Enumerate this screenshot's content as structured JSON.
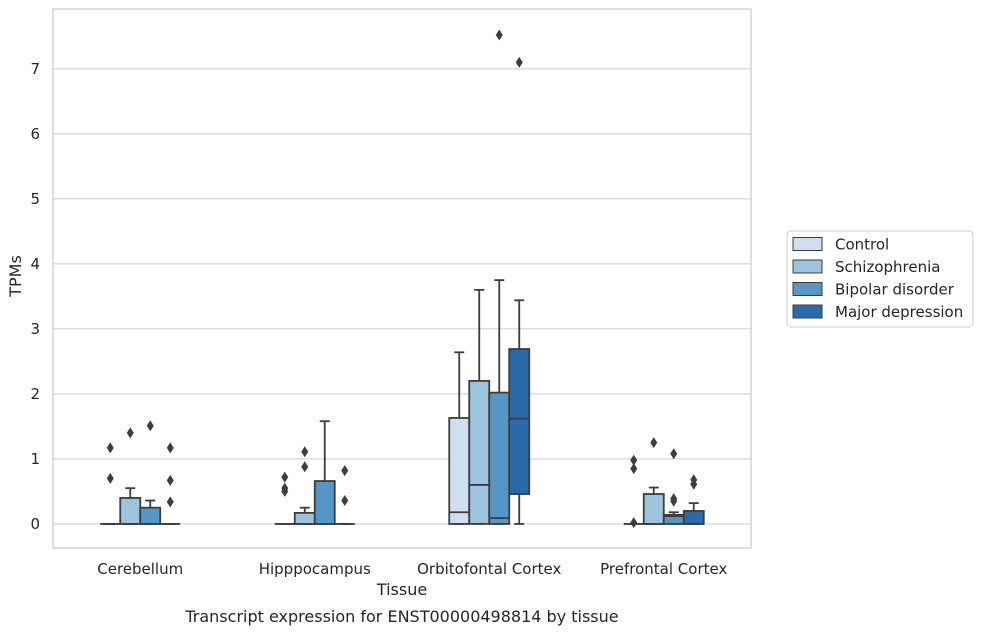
{
  "chart_data": {
    "type": "box",
    "title": "",
    "xlabel": "Tissue",
    "ylabel": "TPMs",
    "caption": "Transcript expression for ENST00000498814 by tissue",
    "ylim": [
      -0.37,
      7.92
    ],
    "yticks": [
      0,
      1,
      2,
      3,
      4,
      5,
      6,
      7
    ],
    "grid": "y",
    "legend_position": "right",
    "categories": [
      "Cerebellum",
      "Hipppocampus",
      "Orbitofontal Cortex",
      "Prefrontal Cortex"
    ],
    "series": [
      {
        "name": "Control",
        "color": "#cfdff0",
        "boxes": [
          {
            "category": "Cerebellum",
            "min": 0,
            "q1": 0,
            "median": 0,
            "q3": 0,
            "max": 0,
            "outliers": [
              1.17,
              0.7
            ]
          },
          {
            "category": "Hipppocampus",
            "min": 0,
            "q1": 0,
            "median": 0,
            "q3": 0,
            "max": 0,
            "outliers": [
              0.72,
              0.55,
              0.5
            ]
          },
          {
            "category": "Orbitofontal Cortex",
            "min": 0,
            "q1": 0,
            "median": 0.18,
            "q3": 1.63,
            "max": 2.64,
            "outliers": []
          },
          {
            "category": "Prefrontal Cortex",
            "min": 0,
            "q1": 0,
            "median": 0,
            "q3": 0,
            "max": 0,
            "outliers": [
              0.98,
              0.85,
              0.02
            ]
          }
        ]
      },
      {
        "name": "Schizophrenia",
        "color": "#9dc4df",
        "boxes": [
          {
            "category": "Cerebellum",
            "min": 0,
            "q1": 0,
            "median": 0,
            "q3": 0.4,
            "max": 0.55,
            "outliers": [
              1.4
            ]
          },
          {
            "category": "Hipppocampus",
            "min": 0,
            "q1": 0,
            "median": 0,
            "q3": 0.17,
            "max": 0.25,
            "outliers": [
              1.11,
              0.88
            ]
          },
          {
            "category": "Orbitofontal Cortex",
            "min": 0,
            "q1": 0,
            "median": 0.6,
            "q3": 2.2,
            "max": 3.6,
            "outliers": []
          },
          {
            "category": "Prefrontal Cortex",
            "min": 0,
            "q1": 0,
            "median": 0,
            "q3": 0.46,
            "max": 0.56,
            "outliers": [
              1.25
            ]
          }
        ]
      },
      {
        "name": "Bipolar disorder",
        "color": "#5596c6",
        "boxes": [
          {
            "category": "Cerebellum",
            "min": 0,
            "q1": 0,
            "median": 0,
            "q3": 0.25,
            "max": 0.36,
            "outliers": [
              1.51
            ]
          },
          {
            "category": "Hipppocampus",
            "min": 0,
            "q1": 0,
            "median": 0,
            "q3": 0.66,
            "max": 1.58,
            "outliers": []
          },
          {
            "category": "Orbitofontal Cortex",
            "min": 0,
            "q1": 0,
            "median": 0.09,
            "q3": 2.02,
            "max": 3.75,
            "outliers": [
              7.52
            ]
          },
          {
            "category": "Prefrontal Cortex",
            "min": 0,
            "q1": 0,
            "median": 0.12,
            "q3": 0.14,
            "max": 0.18,
            "outliers": [
              1.08,
              0.39,
              0.35
            ]
          }
        ]
      },
      {
        "name": "Major depression",
        "color": "#2b6aa8",
        "boxes": [
          {
            "category": "Cerebellum",
            "min": 0,
            "q1": 0,
            "median": 0,
            "q3": 0,
            "max": 0,
            "outliers": [
              1.17,
              0.67,
              0.34
            ]
          },
          {
            "category": "Hipppocampus",
            "min": 0,
            "q1": 0,
            "median": 0,
            "q3": 0,
            "max": 0,
            "outliers": [
              0.82,
              0.36
            ]
          },
          {
            "category": "Orbitofontal Cortex",
            "min": 0,
            "q1": 0.46,
            "median": 1.62,
            "q3": 2.69,
            "max": 3.44,
            "outliers": [
              7.1
            ]
          },
          {
            "category": "Prefrontal Cortex",
            "min": 0,
            "q1": 0,
            "median": 0,
            "q3": 0.2,
            "max": 0.32,
            "outliers": [
              0.68,
              0.61
            ]
          }
        ]
      }
    ]
  }
}
